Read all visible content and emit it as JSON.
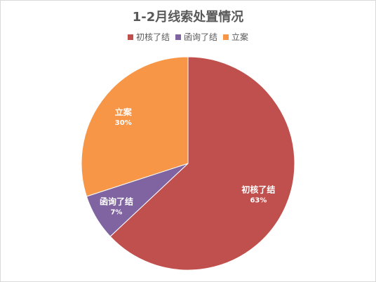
{
  "chart_data": {
    "type": "pie",
    "title": "1-2月线索处置情况",
    "legend_position": "top",
    "categories": [
      "初核了结",
      "函询了结",
      "立案"
    ],
    "values": [
      63,
      7,
      30
    ],
    "value_labels": [
      "63%",
      "7%",
      "30%"
    ],
    "colors": [
      "#c0504d",
      "#8064a2",
      "#f79646"
    ]
  }
}
